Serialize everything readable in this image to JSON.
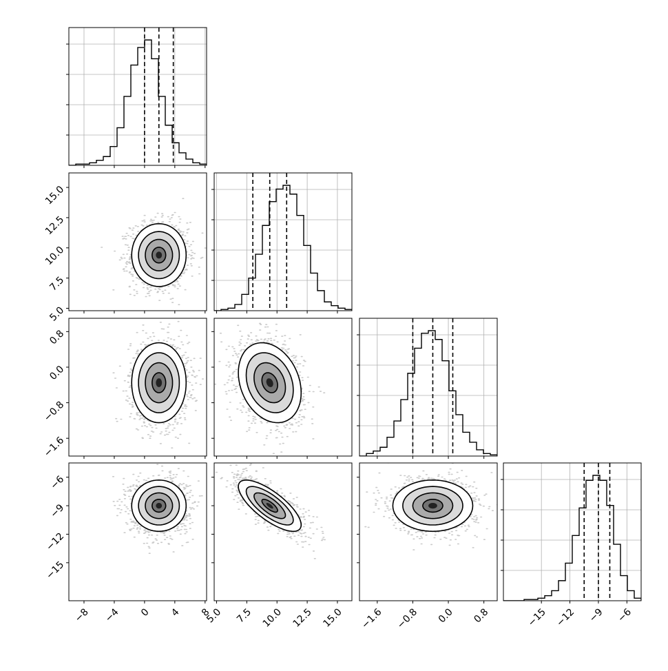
{
  "chart_data": {
    "type": "corner",
    "grid": true,
    "ndim": 4,
    "histogram_bins": 20,
    "quantiles": [
      0.16,
      0.5,
      0.84
    ],
    "variables": [
      {
        "range": [
          -10,
          8.2
        ],
        "ticks": [
          -8,
          -4,
          0,
          4,
          8
        ],
        "tick_labels": [
          "−8",
          "−4",
          "0",
          "4",
          "8"
        ],
        "quantile_values": [
          0.0,
          1.9,
          3.8
        ],
        "histogram": [
          0,
          0.01,
          0.01,
          0.02,
          0.04,
          0.07,
          0.15,
          0.3,
          0.55,
          0.8,
          0.94,
          1.0,
          0.85,
          0.55,
          0.32,
          0.18,
          0.1,
          0.05,
          0.02,
          0.01
        ]
      },
      {
        "range": [
          4.8,
          16.2
        ],
        "ticks": [
          5.0,
          7.5,
          10.0,
          12.5,
          15.0
        ],
        "tick_labels": [
          "5.0",
          "7.5",
          "10.0",
          "12.5",
          "15.0"
        ],
        "quantile_values": [
          8.0,
          9.4,
          10.8
        ],
        "histogram": [
          0,
          0.01,
          0.02,
          0.05,
          0.13,
          0.26,
          0.45,
          0.68,
          0.87,
          0.97,
          1.0,
          0.93,
          0.76,
          0.52,
          0.3,
          0.16,
          0.07,
          0.04,
          0.02,
          0.01
        ]
      },
      {
        "range": [
          -2.0,
          1.1
        ],
        "ticks": [
          -1.6,
          -0.8,
          0.0,
          0.8
        ],
        "tick_labels": [
          "−1.6",
          "−0.8",
          "0.0",
          "0.8"
        ],
        "quantile_values": [
          -0.8,
          -0.35,
          0.1
        ],
        "histogram": [
          0,
          0.02,
          0.04,
          0.07,
          0.15,
          0.28,
          0.45,
          0.66,
          0.86,
          0.98,
          1.0,
          0.93,
          0.76,
          0.52,
          0.33,
          0.19,
          0.11,
          0.05,
          0.02,
          0.01
        ]
      },
      {
        "range": [
          -19,
          -4.5
        ],
        "ticks": [
          -15,
          -12,
          -9,
          -6
        ],
        "tick_labels": [
          "−15",
          "−12",
          "−9",
          "−6"
        ],
        "quantile_values": [
          -10.5,
          -9.0,
          -7.8
        ],
        "histogram": [
          0,
          0,
          0,
          0.01,
          0.01,
          0.02,
          0.04,
          0.08,
          0.16,
          0.3,
          0.52,
          0.74,
          0.96,
          1.0,
          0.96,
          0.76,
          0.45,
          0.2,
          0.08,
          0.02
        ]
      }
    ],
    "pairs": [
      {
        "x_var": 0,
        "y_var": 1,
        "mean": [
          1.9,
          9.4
        ],
        "std": [
          1.8,
          1.3
        ],
        "corr": 0.0
      },
      {
        "x_var": 0,
        "y_var": 2,
        "mean": [
          1.9,
          -0.35
        ],
        "std": [
          1.8,
          0.45
        ],
        "corr": 0.0
      },
      {
        "x_var": 1,
        "y_var": 2,
        "mean": [
          9.4,
          -0.35
        ],
        "std": [
          1.3,
          0.45
        ],
        "corr": -0.25
      },
      {
        "x_var": 0,
        "y_var": 3,
        "mean": [
          1.9,
          -9.0
        ],
        "std": [
          1.8,
          1.35
        ],
        "corr": 0.0
      },
      {
        "x_var": 1,
        "y_var": 3,
        "mean": [
          9.4,
          -9.0
        ],
        "std": [
          1.3,
          1.35
        ],
        "corr": -0.75
      },
      {
        "x_var": 2,
        "y_var": 3,
        "mean": [
          -0.35,
          -9.0
        ],
        "std": [
          0.45,
          1.35
        ],
        "corr": 0.0
      }
    ],
    "contour_levels_sigma": [
      0.5,
      1.0,
      1.5,
      2.0
    ],
    "colors": {
      "line": "#000000",
      "points": "#9e9e9e",
      "grid": "#b0b0b0"
    }
  }
}
